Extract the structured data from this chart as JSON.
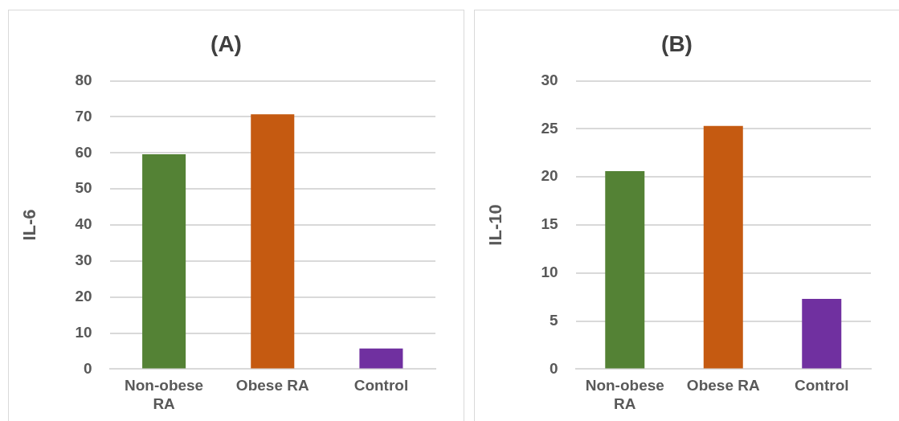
{
  "chart_data": [
    {
      "type": "bar",
      "title": "(A)",
      "ylabel": "IL-6",
      "categories": [
        "Non-obese RA",
        "Obese RA",
        "Control"
      ],
      "values": [
        59.6,
        70.7,
        5.7
      ],
      "colors": [
        "#548235",
        "#c55a11",
        "#7030a0"
      ],
      "ylim": [
        0,
        80
      ],
      "yticks": [
        0,
        10,
        20,
        30,
        40,
        50,
        60,
        70,
        80
      ],
      "grid": "y",
      "legend": false
    },
    {
      "type": "bar",
      "title": "(B)",
      "ylabel": "IL-10",
      "categories": [
        "Non-obese RA",
        "Obese RA",
        "Control"
      ],
      "values": [
        20.6,
        25.3,
        7.3
      ],
      "colors": [
        "#548235",
        "#c55a11",
        "#7030a0"
      ],
      "ylim": [
        0,
        30
      ],
      "yticks": [
        0,
        5,
        10,
        15,
        20,
        25,
        30
      ],
      "grid": "y",
      "legend": false
    }
  ]
}
